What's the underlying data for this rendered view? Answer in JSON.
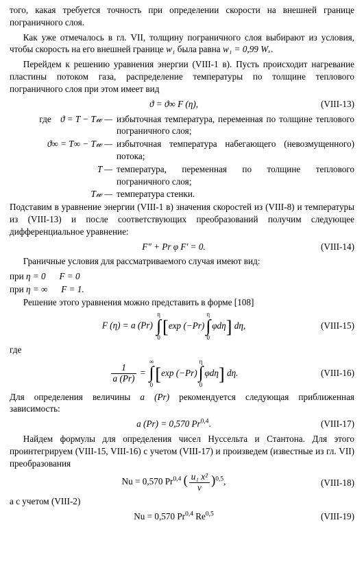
{
  "p1": "того, какая требуется точность при определении скорости на внешней границе пограничного слоя.",
  "p2a": "Как уже отмечалось в гл. VII, толщину пограничного слоя выбирают из условия, чтобы скорость на его внешней границе ",
  "p2b": " была равна ",
  "p2c": ".",
  "sym_w1": "w₁",
  "eq_w1": "w₁ = 0,99 Wₓ",
  "p3": "Перейдем к решению уравнения энергии (VIII-1 в). Пусть происходит нагревание пластины потоком газа, распределение температуры по толщине теплового пограничного слоя при этом имеет вид",
  "eq13": "ϑ = ϑ∞ F (η),",
  "eq13_num": "(VIII-13)",
  "where": "где",
  "def1_l": "ϑ = T − T𝓌 —",
  "def1_r": "избыточная температура, переменная по толщине теплового пограничного слоя;",
  "def2_l": "ϑ∞ = T∞ − T𝓌 —",
  "def2_r": "избыточная температура набегающего (невозмущенного) потока;",
  "def3_l": "T —",
  "def3_r": "температура, переменная по толщине теплового пограничного слоя;",
  "def4_l": "T𝓌 —",
  "def4_r": "температура стенки.",
  "p4": "Подставим в уравнение энергии (VIII-1 в) значения скоростей из (VIII-8) и температуры из (VIII-13) и после соответствующих преобразований получим следующее дифференциальное уравнение:",
  "eq14": "F″ + Pr φ F′ = 0.",
  "eq14_num": "(VIII-14)",
  "p5": "Граничные условия для рассматриваемого случая имеют вид:",
  "cond1_a": "при ",
  "cond1_b": "η = 0",
  "cond1_c": "F = 0",
  "cond2_a": "при ",
  "cond2_b": "η = ∞",
  "cond2_c": "F = 1.",
  "p6": "Решение этого уравнения можно представить в форме [108]",
  "eq15_lhs": "F (η) = a (Pr)",
  "eq15_ui": "η",
  "eq15_li": "0",
  "eq15_in1": "exp (−Pr)",
  "eq15_ui2": "η",
  "eq15_li2": "0",
  "eq15_in2": "φdη",
  "eq15_tail": "dη,",
  "eq15_num": "(VIII-15)",
  "where2": "где",
  "eq16_num_frac": "1",
  "eq16_den_frac": "a (Pr)",
  "eq16_eq": "=",
  "eq16_ui": "∞",
  "eq16_li": "0",
  "eq16_in1": "exp (−Pr)",
  "eq16_ui2": "η",
  "eq16_li2": "0",
  "eq16_in2": "φdη",
  "eq16_tail": "dη.",
  "eq16_num": "(VIII-16)",
  "p7a": "Для определения величины ",
  "p7b": "a (Pr)",
  "p7c": " рекомендуется следующая приближенная зависимость:",
  "eq17": "a (Pr) = 0,570 Pr",
  "eq17_exp": "0,4",
  "eq17_dot": ".",
  "eq17_num": "(VIII-17)",
  "p8": "Найдем формулы для определения чисел Нуссельта и Стантона. Для этого проинтегрируем (VIII-15, VIII-16) с учетом (VIII-17) и произведем (известные из гл. VII) преобразования",
  "eq18_a": "Nu = 0,570 Pr",
  "eq18_e1": "0,4",
  "eq18_fr_num": "u₁ x²",
  "eq18_fr_den": "ν",
  "eq18_e2": "0,5",
  "eq18_comma": ",",
  "eq18_num": "(VIII-18)",
  "p9": "а с учетом (VIII-2)",
  "eq19_a": "Nu = 0,570 Pr",
  "eq19_e1": "0,4",
  "eq19_b": " Re",
  "eq19_e2": "0,5",
  "eq19_num": "(VIII-19)"
}
